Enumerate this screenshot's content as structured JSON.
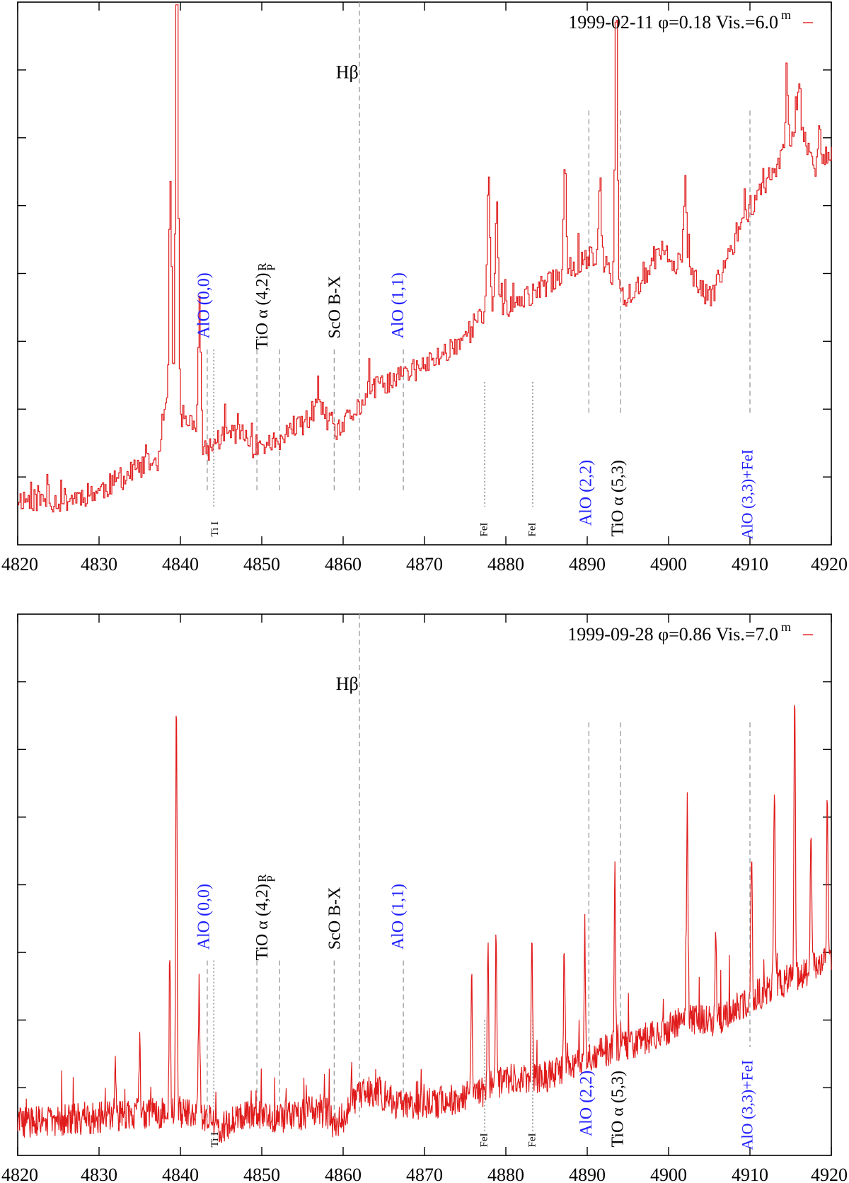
{
  "chart_data": [
    {
      "type": "line",
      "panel": "top",
      "title": "1999-02-11 φ=0.18 Vis.=6.0",
      "legend": {
        "label": "1999-02-11 φ=0.18 Vis.=6.0",
        "superscript": "m",
        "placement": "top-right",
        "color": "#e01b1b"
      },
      "xlabel": "",
      "ylabel": "",
      "xlim": [
        4820,
        4920
      ],
      "ylim": [
        0,
        1
      ],
      "x_ticks": [
        "4820",
        "4830",
        "4840",
        "4850",
        "4860",
        "4870",
        "4880",
        "4890",
        "4900",
        "4910",
        "4920"
      ],
      "series_color": "#e01b1b",
      "step": true,
      "anchors": [
        [
          4820,
          0.085
        ],
        [
          4825,
          0.08
        ],
        [
          4830,
          0.1
        ],
        [
          4835,
          0.14
        ],
        [
          4837.5,
          0.16
        ],
        [
          4838,
          0.26
        ],
        [
          4840,
          0.24
        ],
        [
          4842,
          0.21
        ],
        [
          4843,
          0.17
        ],
        [
          4845,
          0.2
        ],
        [
          4847,
          0.21
        ],
        [
          4849,
          0.18
        ],
        [
          4852,
          0.19
        ],
        [
          4855,
          0.22
        ],
        [
          4857,
          0.26
        ],
        [
          4859,
          0.2
        ],
        [
          4861,
          0.24
        ],
        [
          4864,
          0.29
        ],
        [
          4867,
          0.31
        ],
        [
          4870,
          0.33
        ],
        [
          4873,
          0.36
        ],
        [
          4876,
          0.4
        ],
        [
          4878,
          0.44
        ],
        [
          4881,
          0.44
        ],
        [
          4884,
          0.47
        ],
        [
          4887,
          0.5
        ],
        [
          4890,
          0.53
        ],
        [
          4892,
          0.52
        ],
        [
          4894,
          0.45
        ],
        [
          4897,
          0.49
        ],
        [
          4899,
          0.54
        ],
        [
          4902,
          0.51
        ],
        [
          4905,
          0.45
        ],
        [
          4907,
          0.52
        ],
        [
          4909,
          0.6
        ],
        [
          4912,
          0.67
        ],
        [
          4914,
          0.72
        ],
        [
          4916,
          0.78
        ],
        [
          4918,
          0.7
        ],
        [
          4920,
          0.73
        ]
      ],
      "spikes": [
        [
          4839.5,
          0.89
        ],
        [
          4838.7,
          0.43
        ],
        [
          4842.3,
          0.24
        ],
        [
          4877.8,
          0.24
        ],
        [
          4878.8,
          0.2
        ],
        [
          4887.2,
          0.21
        ],
        [
          4893.5,
          0.55
        ],
        [
          4891.5,
          0.15
        ],
        [
          4902,
          0.16
        ],
        [
          4914.5,
          0.12
        ],
        [
          4916,
          0.08
        ],
        [
          4918.5,
          0.05
        ]
      ],
      "noise": 0.022,
      "seed": 11,
      "lines": [
        {
          "x": 4862.0,
          "top": 1.0,
          "bottom": 0.1,
          "style": "dashed"
        },
        {
          "x": 4843.3,
          "top": 0.36,
          "bottom": 0.1,
          "style": "dashed"
        },
        {
          "x": 4844.1,
          "top": 0.36,
          "bottom": 0.07,
          "style": "dotted"
        },
        {
          "x": 4849.4,
          "top": 0.36,
          "bottom": 0.1,
          "style": "dashed"
        },
        {
          "x": 4852.2,
          "top": 0.36,
          "bottom": 0.1,
          "style": "dashed"
        },
        {
          "x": 4858.9,
          "top": 0.36,
          "bottom": 0.1,
          "style": "dashed"
        },
        {
          "x": 4867.4,
          "top": 0.36,
          "bottom": 0.1,
          "style": "dashed"
        },
        {
          "x": 4877.4,
          "top": 0.3,
          "bottom": 0.07,
          "style": "dotted"
        },
        {
          "x": 4883.3,
          "top": 0.3,
          "bottom": 0.07,
          "style": "dotted"
        },
        {
          "x": 4890.2,
          "top": 0.8,
          "bottom": 0.24,
          "style": "dashed"
        },
        {
          "x": 4894.1,
          "top": 0.8,
          "bottom": 0.24,
          "style": "dashed"
        },
        {
          "x": 4910.0,
          "top": 0.8,
          "bottom": 0.24,
          "style": "dashed"
        }
      ],
      "annotations": [
        {
          "text": "Hβ",
          "x": 4860.5,
          "y": 0.86,
          "rotate": false,
          "size": 26,
          "color": "#000000"
        },
        {
          "text": "AlO (0,0)",
          "x": 4843.5,
          "y": 0.38,
          "rotate": true,
          "size": 24,
          "color": "#2020ff"
        },
        {
          "text": "TiO α (4,2)",
          "x": 4850.7,
          "y": 0.36,
          "rotate": true,
          "size": 24,
          "color": "#000000"
        },
        {
          "text": "R",
          "x": 4850.5,
          "y": 0.505,
          "rotate": true,
          "size": 17,
          "color": "#000000"
        },
        {
          "text": "P",
          "x": 4851.6,
          "y": 0.505,
          "rotate": true,
          "size": 17,
          "color": "#000000"
        },
        {
          "text": "ScO B-X",
          "x": 4859.6,
          "y": 0.38,
          "rotate": true,
          "size": 24,
          "color": "#000000"
        },
        {
          "text": "AlO (1,1)",
          "x": 4867.4,
          "y": 0.38,
          "rotate": true,
          "size": 24,
          "color": "#2020ff"
        },
        {
          "text": "Ti I",
          "x": 4844.6,
          "y": 0.015,
          "rotate": true,
          "size": 15,
          "color": "#000000"
        },
        {
          "text": "FeI",
          "x": 4877.7,
          "y": 0.015,
          "rotate": true,
          "size": 15,
          "color": "#000000"
        },
        {
          "text": "FeI",
          "x": 4883.6,
          "y": 0.015,
          "rotate": true,
          "size": 15,
          "color": "#000000"
        },
        {
          "text": "AlO (2,2)",
          "x": 4890.5,
          "y": 0.035,
          "rotate": true,
          "size": 24,
          "color": "#2020ff"
        },
        {
          "text": "TiO α (5,3)",
          "x": 4894.4,
          "y": 0.015,
          "rotate": true,
          "size": 24,
          "color": "#000000"
        },
        {
          "text": "AlO (3,3)+FeI",
          "x": 4910.3,
          "y": 0.01,
          "rotate": true,
          "size": 22,
          "color": "#2020ff"
        }
      ]
    },
    {
      "type": "line",
      "panel": "bottom",
      "title": "1999-09-28 φ=0.86 Vis.=7.0",
      "legend": {
        "label": "1999-09-28 φ=0.86 Vis.=7.0",
        "superscript": "m",
        "placement": "top-right",
        "color": "#e01b1b"
      },
      "xlabel": "",
      "ylabel": "",
      "xlim": [
        4820,
        4920
      ],
      "ylim": [
        0,
        1
      ],
      "x_ticks": [
        "4820",
        "4830",
        "4840",
        "4850",
        "4860",
        "4870",
        "4880",
        "4890",
        "4900",
        "4910",
        "4920"
      ],
      "series_color": "#e01b1b",
      "step": false,
      "anchors": [
        [
          4820,
          0.06
        ],
        [
          4830,
          0.07
        ],
        [
          4838,
          0.08
        ],
        [
          4842,
          0.08
        ],
        [
          4845,
          0.05
        ],
        [
          4848,
          0.08
        ],
        [
          4852,
          0.07
        ],
        [
          4856,
          0.08
        ],
        [
          4858,
          0.08
        ],
        [
          4859,
          0.05
        ],
        [
          4862,
          0.11
        ],
        [
          4864,
          0.12
        ],
        [
          4867,
          0.09
        ],
        [
          4872,
          0.1
        ],
        [
          4876,
          0.11
        ],
        [
          4880,
          0.14
        ],
        [
          4884,
          0.14
        ],
        [
          4888,
          0.16
        ],
        [
          4891,
          0.19
        ],
        [
          4894,
          0.2
        ],
        [
          4898,
          0.22
        ],
        [
          4902,
          0.25
        ],
        [
          4906,
          0.25
        ],
        [
          4910,
          0.29
        ],
        [
          4914,
          0.32
        ],
        [
          4918,
          0.35
        ],
        [
          4920,
          0.36
        ]
      ],
      "spikes": [
        [
          4839.5,
          0.75
        ],
        [
          4838.7,
          0.3
        ],
        [
          4842.3,
          0.23
        ],
        [
          4832,
          0.11
        ],
        [
          4835,
          0.14
        ],
        [
          4875.8,
          0.22
        ],
        [
          4877.8,
          0.26
        ],
        [
          4878.8,
          0.26
        ],
        [
          4883.2,
          0.29
        ],
        [
          4887.2,
          0.21
        ],
        [
          4889.7,
          0.24
        ],
        [
          4893.4,
          0.33
        ],
        [
          4902.3,
          0.4
        ],
        [
          4905.8,
          0.15
        ],
        [
          4910.2,
          0.27
        ],
        [
          4913,
          0.35
        ],
        [
          4915.5,
          0.53
        ],
        [
          4917.5,
          0.28
        ],
        [
          4919.5,
          0.3
        ]
      ],
      "noise": 0.03,
      "seed": 29,
      "lines": [
        {
          "x": 4862.0,
          "top": 1.0,
          "bottom": 0.07,
          "style": "dashed"
        },
        {
          "x": 4843.3,
          "top": 0.36,
          "bottom": 0.07,
          "style": "dashed"
        },
        {
          "x": 4844.1,
          "top": 0.36,
          "bottom": 0.03,
          "style": "dotted"
        },
        {
          "x": 4849.4,
          "top": 0.36,
          "bottom": 0.1,
          "style": "dashed"
        },
        {
          "x": 4852.2,
          "top": 0.36,
          "bottom": 0.1,
          "style": "dashed"
        },
        {
          "x": 4858.9,
          "top": 0.36,
          "bottom": 0.07,
          "style": "dashed"
        },
        {
          "x": 4867.4,
          "top": 0.36,
          "bottom": 0.07,
          "style": "dashed"
        },
        {
          "x": 4877.4,
          "top": 0.25,
          "bottom": 0.04,
          "style": "dotted"
        },
        {
          "x": 4883.3,
          "top": 0.25,
          "bottom": 0.04,
          "style": "dotted"
        },
        {
          "x": 4890.2,
          "top": 0.8,
          "bottom": 0.2,
          "style": "dashed"
        },
        {
          "x": 4894.1,
          "top": 0.8,
          "bottom": 0.2,
          "style": "dashed"
        },
        {
          "x": 4910.0,
          "top": 0.8,
          "bottom": 0.2,
          "style": "dashed"
        }
      ],
      "annotations": [
        {
          "text": "Hβ",
          "x": 4860.5,
          "y": 0.86,
          "rotate": false,
          "size": 26,
          "color": "#000000"
        },
        {
          "text": "AlO (0,0)",
          "x": 4843.5,
          "y": 0.38,
          "rotate": true,
          "size": 24,
          "color": "#2020ff"
        },
        {
          "text": "TiO α (4,2)",
          "x": 4850.7,
          "y": 0.36,
          "rotate": true,
          "size": 24,
          "color": "#000000"
        },
        {
          "text": "R",
          "x": 4850.5,
          "y": 0.505,
          "rotate": true,
          "size": 17,
          "color": "#000000"
        },
        {
          "text": "P",
          "x": 4851.6,
          "y": 0.505,
          "rotate": true,
          "size": 17,
          "color": "#000000"
        },
        {
          "text": "ScO B-X",
          "x": 4859.6,
          "y": 0.38,
          "rotate": true,
          "size": 24,
          "color": "#000000"
        },
        {
          "text": "AlO (1,1)",
          "x": 4867.4,
          "y": 0.38,
          "rotate": true,
          "size": 24,
          "color": "#2020ff"
        },
        {
          "text": "Ti I",
          "x": 4844.6,
          "y": 0.015,
          "rotate": true,
          "size": 15,
          "color": "#000000"
        },
        {
          "text": "FeI",
          "x": 4877.7,
          "y": 0.015,
          "rotate": true,
          "size": 15,
          "color": "#000000"
        },
        {
          "text": "FeI",
          "x": 4883.6,
          "y": 0.015,
          "rotate": true,
          "size": 15,
          "color": "#000000"
        },
        {
          "text": "AlO (2,2)",
          "x": 4890.5,
          "y": 0.035,
          "rotate": true,
          "size": 24,
          "color": "#2020ff"
        },
        {
          "text": "TiO α (5,3)",
          "x": 4894.4,
          "y": 0.015,
          "rotate": true,
          "size": 24,
          "color": "#000000"
        },
        {
          "text": "AlO (3,3)+FeI",
          "x": 4910.3,
          "y": 0.01,
          "rotate": true,
          "size": 22,
          "color": "#2020ff"
        }
      ]
    }
  ]
}
